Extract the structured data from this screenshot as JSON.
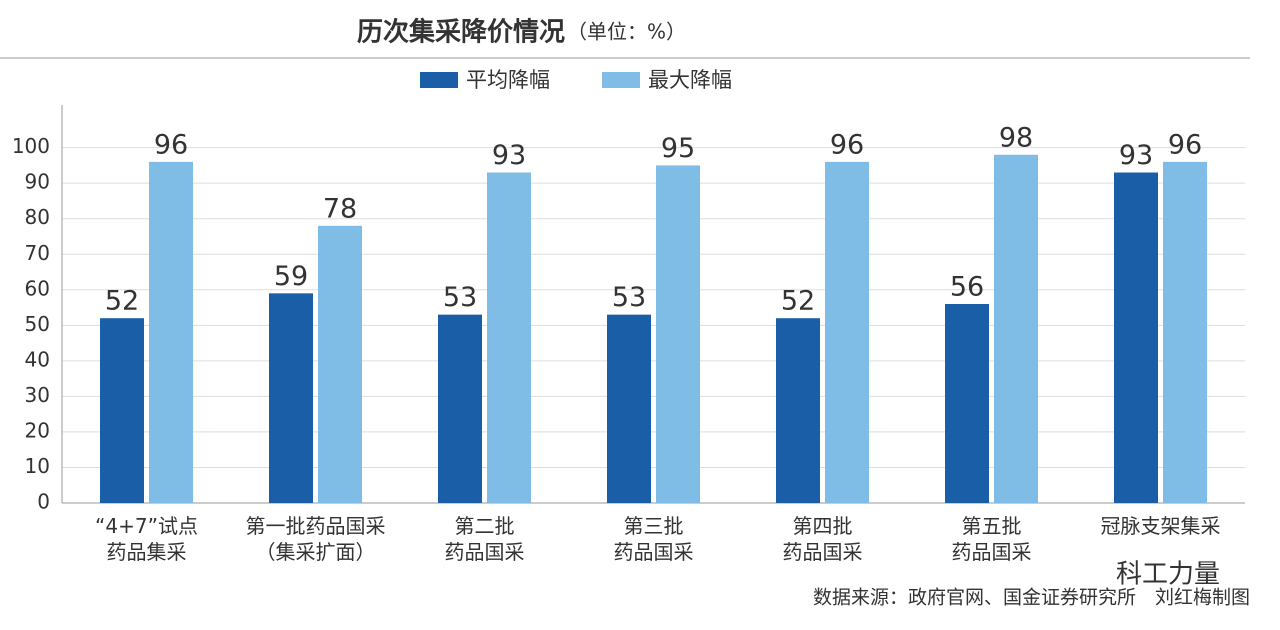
{
  "chart_data": {
    "type": "bar",
    "title": "历次集采降价情况",
    "subtitle": "（单位：%）",
    "categories": [
      "“4+7”试点\n药品集采",
      "第一批药品国采\n（集采扩面）",
      "第二批\n药品国采",
      "第三批\n药品国采",
      "第四批\n药品国采",
      "第五批\n药品国采",
      "冠脉支架集采"
    ],
    "series": [
      {
        "name": "平均降幅",
        "color": "#1a5ea8",
        "label_color": "#1d6a8c",
        "values": [
          52,
          59,
          53,
          53,
          52,
          56,
          93
        ]
      },
      {
        "name": "最大降幅",
        "color": "#80bde6",
        "label_color": "#111111",
        "values": [
          96,
          78,
          93,
          95,
          96,
          98,
          96
        ]
      }
    ],
    "ylim": [
      0,
      112
    ],
    "yticks": [
      0,
      10,
      20,
      30,
      40,
      50,
      60,
      70,
      80,
      90,
      100
    ],
    "grid": true,
    "source": "数据来源：政府官网、国金证券研究所　刘红梅制图",
    "watermark": "科工力量"
  }
}
